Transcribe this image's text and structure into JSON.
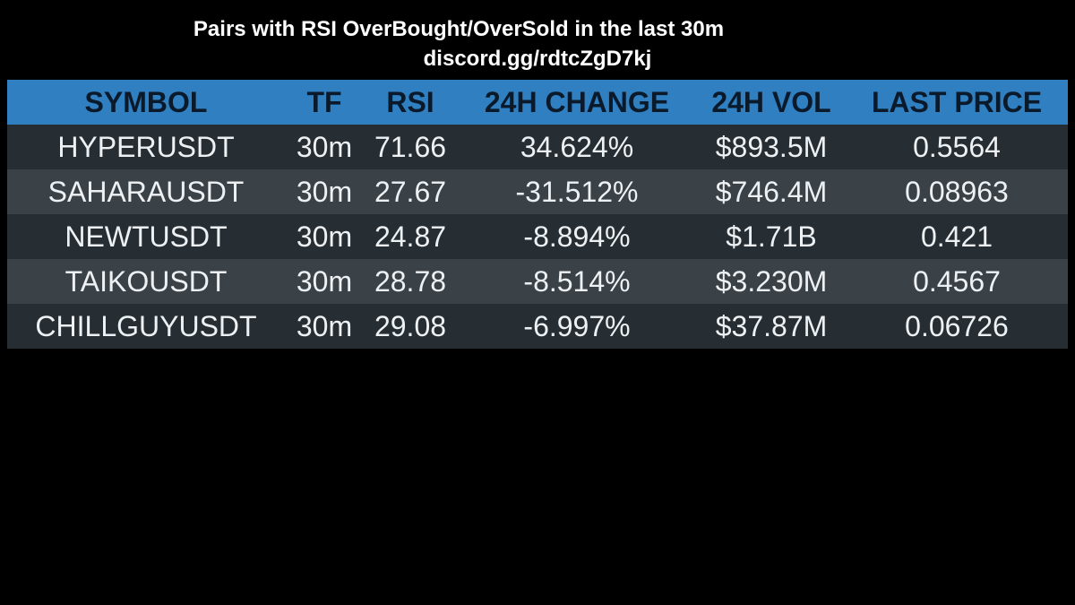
{
  "header": {
    "title": "Pairs with RSI OverBought/OverSold in the last 30m",
    "subtitle": "discord.gg/rdtcZgD7kj"
  },
  "table": {
    "columns": [
      "SYMBOL",
      "TF",
      "RSI",
      "24H CHANGE",
      "24H VOL",
      "LAST PRICE"
    ],
    "rows": [
      [
        "HYPERUSDT",
        "30m",
        "71.66",
        "34.624%",
        "$893.5M",
        "0.5564"
      ],
      [
        "SAHARAUSDT",
        "30m",
        "27.67",
        "-31.512%",
        "$746.4M",
        "0.08963"
      ],
      [
        "NEWTUSDT",
        "30m",
        "24.87",
        "-8.894%",
        "$1.71B",
        "0.421"
      ],
      [
        "TAIKOUSDT",
        "30m",
        "28.78",
        "-8.514%",
        "$3.230M",
        "0.4567"
      ],
      [
        "CHILLGUYUSDT",
        "30m",
        "29.08",
        "-6.997%",
        "$37.87M",
        "0.06726"
      ]
    ]
  },
  "colors": {
    "background": "#000000",
    "header_bg": "#2f7fc1",
    "header_text": "#0b1a2a",
    "row_odd": "#272e33",
    "row_even": "#3a4147",
    "cell_text": "#eef1f3"
  }
}
